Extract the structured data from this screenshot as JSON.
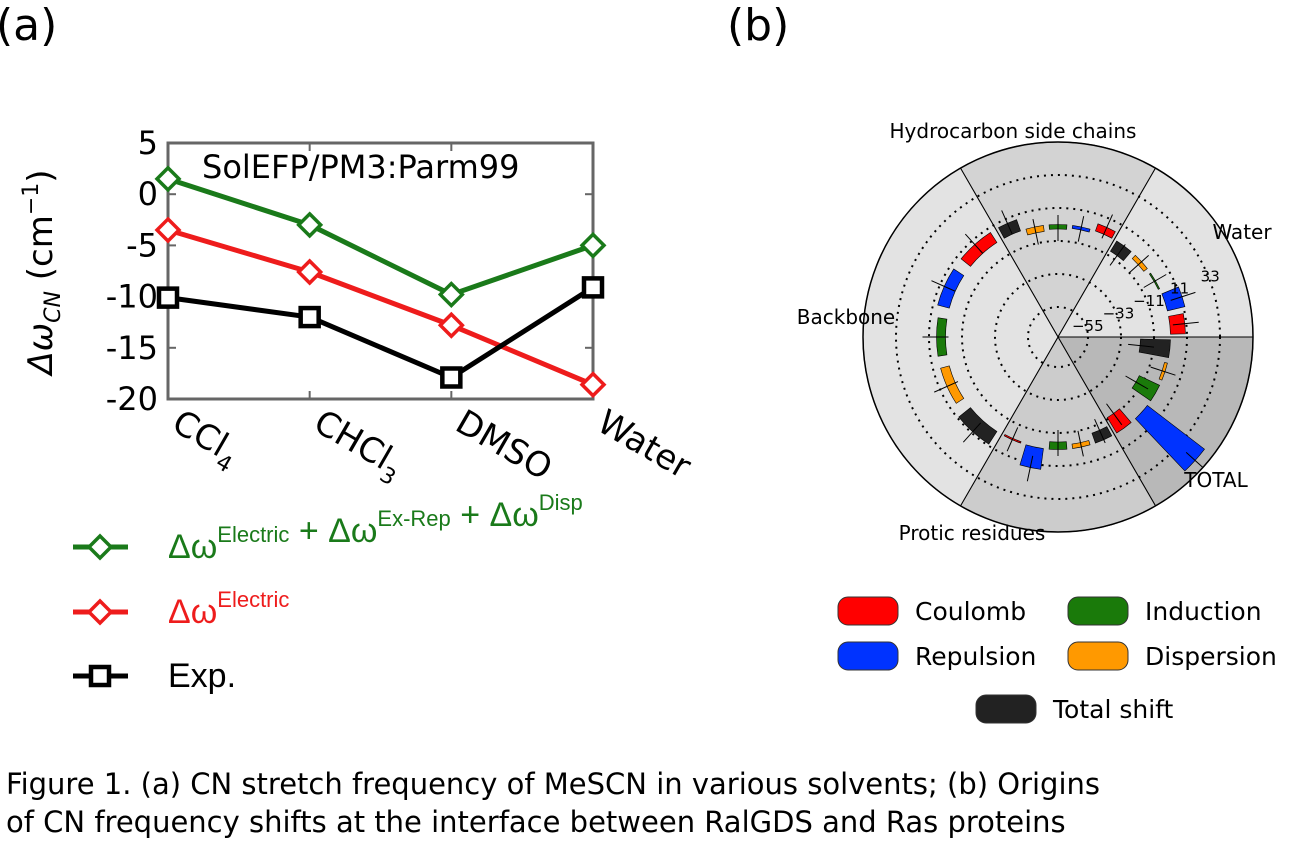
{
  "panel_labels": {
    "a": "(a)",
    "b": "(b)"
  },
  "chart_data": [
    {
      "type": "line",
      "annotation": "SolEFP/PM3:Parm99",
      "ylabel": "Δω",
      "ylabel_sub": "CN",
      "ylabel_unit": "(cm",
      "ylabel_exp": "−1",
      "ylabel_close": ")",
      "ylim": [
        -20,
        5
      ],
      "yticks": [
        5,
        0,
        -5,
        -10,
        -15,
        -20
      ],
      "ytick_labels": [
        "5",
        "0",
        "-5",
        "-10",
        "-15",
        "-20"
      ],
      "categories": [
        {
          "base": "CCl",
          "sub": "4"
        },
        {
          "base": "CHCl",
          "sub": "3"
        },
        {
          "base": "DMSO",
          "sub": ""
        },
        {
          "base": "Water",
          "sub": ""
        }
      ],
      "series": [
        {
          "key": "total",
          "marker": "diamond",
          "color": "#1a7a1a",
          "values": [
            1.5,
            -3.0,
            -9.8,
            -5.0
          ],
          "legend_parts": [
            {
              "base": "Δω",
              "sup": "Electric"
            },
            {
              "base": " + Δω",
              "sup": "Ex-Rep"
            },
            {
              "base": " + Δω",
              "sup": "Disp"
            }
          ]
        },
        {
          "key": "electric",
          "marker": "diamond",
          "color": "#ee1c1c",
          "values": [
            -3.5,
            -7.6,
            -12.8,
            -18.6
          ],
          "legend_parts": [
            {
              "base": "Δω",
              "sup": "Electric"
            }
          ]
        },
        {
          "key": "exp",
          "marker": "square",
          "color": "#000000",
          "values": [
            -10.1,
            -12.0,
            -17.9,
            -9.1
          ],
          "legend_parts": [
            {
              "base": "Exp.",
              "sup": ""
            }
          ]
        }
      ]
    },
    {
      "type": "polar-bar",
      "sector_labels": [
        "Hydrocarbon side chains",
        "Water",
        "TOTAL",
        "Protic residues",
        "Backbone"
      ],
      "radial_ticks": [
        -55,
        -33,
        -11,
        11,
        33
      ],
      "radial_tick_labels": [
        "−55",
        "−33",
        "−11",
        "11",
        "33"
      ],
      "baseline": 0,
      "sectors": [
        {
          "name": "Hydrocarbon side chains",
          "theta_deg": [
            60,
            120
          ],
          "shade": "#d3d3d3",
          "bars": {
            "Coulomb": 5,
            "Repulsion": -2,
            "Induction": -3,
            "Dispersion": -4,
            "Total shift": 8
          }
        },
        {
          "name": "Water",
          "theta_deg": [
            0,
            60
          ],
          "shade": "#e3e3e3",
          "bars": {
            "Coulomb": 10,
            "Repulsion": 12,
            "Induction": -1,
            "Dispersion": -3,
            "Total shift": -8
          }
        },
        {
          "name": "TOTAL",
          "theta_deg": [
            -60,
            0
          ],
          "shade": "#b8b8b8",
          "bars": {
            "Coulomb": -12,
            "Repulsion": 48,
            "Induction": -15,
            "Dispersion": -2,
            "Total shift": -20
          }
        },
        {
          "name": "Protic residues",
          "theta_deg": [
            -120,
            -60
          ],
          "shade": "#cccccc",
          "bars": {
            "Coulomb": -1,
            "Repulsion": 14,
            "Induction": -5,
            "Dispersion": -3,
            "Total shift": -7
          }
        },
        {
          "name": "Backbone",
          "theta_deg": [
            120,
            240
          ],
          "shade": "#e3e3e3",
          "bars": {
            "Coulomb": 8,
            "Repulsion": 8,
            "Induction": 6,
            "Dispersion": 6,
            "Total shift": 10
          }
        }
      ],
      "legend": [
        {
          "name": "Coulomb",
          "color": "#ff0000"
        },
        {
          "name": "Induction",
          "color": "#1a7a0a"
        },
        {
          "name": "Repulsion",
          "color": "#0033ff"
        },
        {
          "name": "Dispersion",
          "color": "#ff9900"
        },
        {
          "name": "Total shift",
          "color": "#222222"
        }
      ]
    }
  ],
  "caption": {
    "line1": "Figure 1. (a) CN stretch frequency of MeSCN in various solvents; (b) Origins",
    "line2": "of CN frequency shifts at the interface between RalGDS and Ras proteins"
  }
}
